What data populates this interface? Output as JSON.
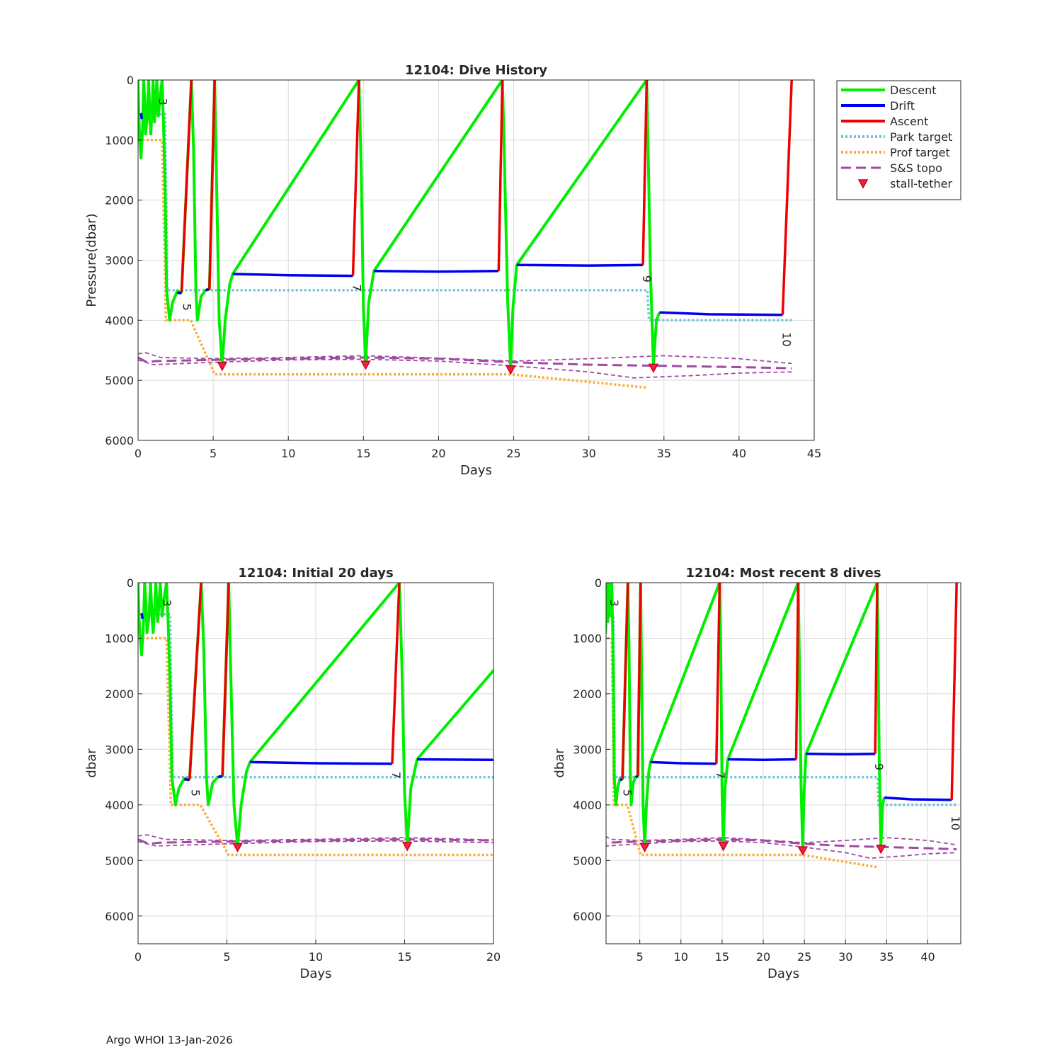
{
  "footer": "Argo WHOI 13-Jan-2026",
  "colors": {
    "descent": "#00ee00",
    "drift": "#0000ee",
    "ascent": "#ee0000",
    "park_target": "#6cc3dd",
    "prof_target": "#ffaa33",
    "topo": "#a04aa0",
    "stall": "#ee2244",
    "grid": "#d9d9d9",
    "axis": "#262626"
  },
  "legend": {
    "placement": "outside-right",
    "entries": [
      {
        "label": "Descent",
        "style": "descent"
      },
      {
        "label": "Drift",
        "style": "drift"
      },
      {
        "label": "Ascent",
        "style": "ascent"
      },
      {
        "label": "Park target",
        "style": "park"
      },
      {
        "label": "Prof target",
        "style": "prof"
      },
      {
        "label": "S&S topo",
        "style": "topo"
      },
      {
        "label": "stall-tether",
        "style": "stall"
      }
    ]
  },
  "chart_data": {
    "type": "line",
    "x_unit": "Days",
    "y_unit": "Pressure (dbar)",
    "y_reversed": true,
    "descent": [
      [
        0,
        0
      ],
      [
        0.05,
        600
      ],
      [
        0.12,
        1000
      ],
      [
        0.2,
        1300
      ],
      [
        0.3,
        800
      ],
      [
        0.37,
        0
      ],
      [
        0.45,
        400
      ],
      [
        0.5,
        900
      ],
      [
        0.62,
        600
      ],
      [
        0.7,
        0
      ],
      [
        0.8,
        700
      ],
      [
        0.85,
        900
      ],
      [
        0.95,
        400
      ],
      [
        1.0,
        0
      ],
      [
        1.1,
        700
      ],
      [
        1.15,
        500
      ],
      [
        1.25,
        0
      ],
      [
        1.35,
        600
      ],
      [
        1.5,
        200
      ],
      [
        1.6,
        0
      ],
      [
        1.7,
        800
      ],
      [
        1.8,
        1800
      ],
      [
        1.9,
        3500
      ],
      [
        2.1,
        4000
      ],
      [
        2.3,
        3700
      ],
      [
        2.6,
        3520
      ],
      [
        2.9,
        3530
      ],
      [
        3.55,
        0
      ],
      [
        3.7,
        1200
      ],
      [
        3.85,
        3500
      ],
      [
        3.95,
        4000
      ],
      [
        4.2,
        3600
      ],
      [
        4.5,
        3500
      ],
      [
        4.75,
        3480
      ],
      [
        5.1,
        0
      ],
      [
        5.2,
        1400
      ],
      [
        5.4,
        4000
      ],
      [
        5.6,
        4750
      ],
      [
        5.8,
        4000
      ],
      [
        6.1,
        3400
      ],
      [
        6.3,
        3230
      ],
      [
        14.7,
        0
      ],
      [
        14.85,
        1500
      ],
      [
        15.0,
        3800
      ],
      [
        15.15,
        4700
      ],
      [
        15.35,
        3700
      ],
      [
        15.7,
        3180
      ],
      [
        24.25,
        0
      ],
      [
        24.35,
        1000
      ],
      [
        24.6,
        3700
      ],
      [
        24.8,
        4800
      ],
      [
        24.95,
        3800
      ],
      [
        25.2,
        3080
      ],
      [
        33.85,
        0
      ],
      [
        33.95,
        1200
      ],
      [
        34.1,
        3200
      ],
      [
        34.3,
        4750
      ],
      [
        34.5,
        4000
      ],
      [
        34.7,
        3870
      ]
    ],
    "drift": [
      [
        0.2,
        550
      ],
      [
        0.25,
        650
      ],
      [
        2.6,
        3540
      ],
      [
        2.9,
        3550
      ],
      [
        4.5,
        3500
      ],
      [
        4.75,
        3480
      ],
      [
        6.3,
        3230
      ],
      [
        10,
        3250
      ],
      [
        14.3,
        3260
      ],
      [
        15.7,
        3180
      ],
      [
        20,
        3190
      ],
      [
        24.0,
        3180
      ],
      [
        25.2,
        3080
      ],
      [
        30,
        3090
      ],
      [
        33.6,
        3080
      ],
      [
        34.7,
        3870
      ],
      [
        38,
        3900
      ],
      [
        42.9,
        3910
      ]
    ],
    "ascent": [
      [
        2.9,
        3530
      ],
      [
        3.55,
        0
      ],
      [
        4.75,
        3480
      ],
      [
        5.1,
        0
      ],
      [
        14.3,
        3260
      ],
      [
        14.7,
        0
      ],
      [
        24.0,
        3180
      ],
      [
        24.25,
        0
      ],
      [
        33.6,
        3080
      ],
      [
        33.85,
        0
      ],
      [
        42.9,
        3910
      ],
      [
        43.5,
        0
      ]
    ],
    "park_target": [
      [
        0,
        570
      ],
      [
        1.8,
        570
      ],
      [
        1.95,
        3500
      ],
      [
        33.9,
        3500
      ],
      [
        34.0,
        4000
      ],
      [
        43.5,
        4000
      ]
    ],
    "prof_target": [
      [
        0,
        1000
      ],
      [
        1.6,
        1000
      ],
      [
        1.85,
        4000
      ],
      [
        3.5,
        4000
      ],
      [
        5.1,
        4900
      ],
      [
        24.8,
        4900
      ],
      [
        33.8,
        5120
      ]
    ],
    "topo_main": [
      [
        0,
        4620
      ],
      [
        0.6,
        4700
      ],
      [
        1.2,
        4680
      ],
      [
        5,
        4660
      ],
      [
        10,
        4640
      ],
      [
        15,
        4620
      ],
      [
        20,
        4640
      ],
      [
        25,
        4700
      ],
      [
        30,
        4740
      ],
      [
        35,
        4760
      ],
      [
        40,
        4780
      ],
      [
        43.5,
        4800
      ]
    ],
    "topo_upper": [
      [
        0,
        4560
      ],
      [
        0.5,
        4540
      ],
      [
        1.5,
        4620
      ],
      [
        5,
        4640
      ],
      [
        10,
        4620
      ],
      [
        15,
        4590
      ],
      [
        20,
        4630
      ],
      [
        25,
        4680
      ],
      [
        30,
        4640
      ],
      [
        35,
        4590
      ],
      [
        40,
        4640
      ],
      [
        43.5,
        4720
      ]
    ],
    "topo_lower": [
      [
        0,
        4660
      ],
      [
        1,
        4740
      ],
      [
        5,
        4700
      ],
      [
        10,
        4660
      ],
      [
        15,
        4650
      ],
      [
        20,
        4680
      ],
      [
        25,
        4760
      ],
      [
        30,
        4860
      ],
      [
        33,
        4960
      ],
      [
        37,
        4920
      ],
      [
        40,
        4880
      ],
      [
        43.5,
        4860
      ]
    ],
    "stall_tether": [
      [
        5.6,
        4760
      ],
      [
        15.15,
        4740
      ],
      [
        24.8,
        4820
      ],
      [
        34.3,
        4790
      ]
    ],
    "panels": [
      {
        "title": "12104: Dive History",
        "xlabel": "Days",
        "ylabel": "Pressure(dbar)",
        "xlim": [
          0,
          45
        ],
        "ylim": [
          0,
          6000
        ],
        "xticks": [
          0,
          5,
          10,
          15,
          20,
          25,
          30,
          35,
          40,
          45
        ],
        "yticks": [
          0,
          1000,
          2000,
          3000,
          4000,
          5000,
          6000
        ]
      },
      {
        "title": "12104: Initial 20 days",
        "xlabel": "Days",
        "ylabel": "dbar",
        "xlim": [
          0,
          20
        ],
        "ylim": [
          0,
          6500
        ],
        "xticks": [
          0,
          5,
          10,
          15,
          20
        ],
        "yticks": [
          0,
          1000,
          2000,
          3000,
          4000,
          5000,
          6000
        ]
      },
      {
        "title": "12104: Most recent 8 dives",
        "xlabel": "Days",
        "ylabel": "dbar",
        "xlim": [
          0.9,
          44
        ],
        "ylim": [
          0,
          6500
        ],
        "xticks": [
          5,
          10,
          15,
          20,
          25,
          30,
          35,
          40
        ],
        "yticks": [
          0,
          1000,
          2000,
          3000,
          4000,
          5000,
          6000
        ]
      }
    ],
    "annotations": [
      {
        "text": "3",
        "x": 1.4,
        "y": 300
      },
      {
        "text": "5",
        "x": 3.0,
        "y": 3720
      },
      {
        "text": "7",
        "x": 14.3,
        "y": 3400
      },
      {
        "text": "9",
        "x": 33.6,
        "y": 3250
      },
      {
        "text": "10",
        "x": 42.9,
        "y": 4200
      }
    ]
  }
}
